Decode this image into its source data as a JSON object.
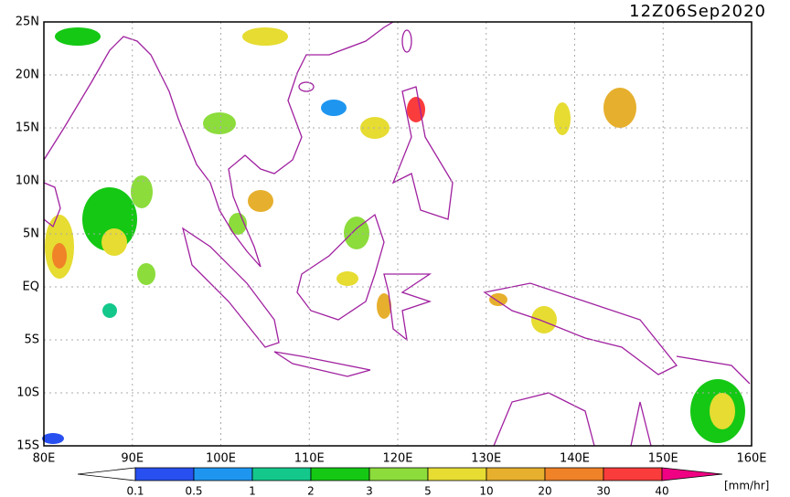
{
  "timestamp": "12Z06Sep2020",
  "lat_labels": [
    "25N",
    "20N",
    "15N",
    "10N",
    "5N",
    "EQ",
    "5S",
    "10S",
    "15S"
  ],
  "lon_labels": [
    "80E",
    "90E",
    "100E",
    "110E",
    "120E",
    "130E",
    "140E",
    "150E",
    "160E"
  ],
  "colorbar": {
    "labels": [
      "0.1",
      "0.5",
      "1",
      "2",
      "3",
      "5",
      "10",
      "20",
      "30",
      "40"
    ],
    "colors": [
      "#ffffff",
      "#2850f0",
      "#1e96f0",
      "#14c88c",
      "#14c814",
      "#8cdc3c",
      "#e6dc32",
      "#e6af2d",
      "#f08228",
      "#fa3c3c",
      "#f00082"
    ],
    "unit": "[mm/hr]"
  }
}
